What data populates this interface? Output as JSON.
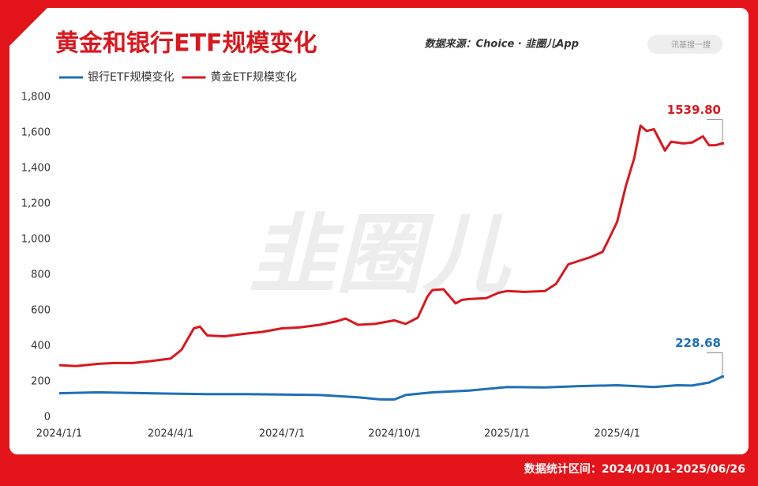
{
  "header": {
    "source": "数据来源：Choice · 韭圈儿App",
    "search": "讯基搜一搜"
  },
  "watermark": "韭圈儿",
  "footer": "数据统计区间：2024/01/01-2025/06/26",
  "chart_data": {
    "type": "line",
    "title": "黄金和银行ETF规模变化",
    "xlim": [
      "2024/1/1",
      "2025/6/26"
    ],
    "xticks": [
      "2024/1/1",
      "2024/4/1",
      "2024/7/1",
      "2024/10/1",
      "2025/1/1",
      "2025/4/1"
    ],
    "ylim": [
      0,
      1800
    ],
    "yticks": [
      0,
      200,
      400,
      600,
      800,
      {
        "value": 1000,
        "label": "1,000"
      },
      {
        "value": 1200,
        "label": "1,200"
      },
      {
        "value": 1400,
        "label": "1,400"
      },
      {
        "value": 1600,
        "label": "1,600"
      },
      {
        "value": 1800,
        "label": "1,800"
      }
    ],
    "grid": false,
    "legend": "top-left",
    "series": [
      {
        "name": "银行ETF规模变化",
        "color": "#1f6fb8",
        "x": [
          "2024/1/1",
          "2024/2/1",
          "2024/3/1",
          "2024/4/1",
          "2024/5/1",
          "2024/6/1",
          "2024/7/1",
          "2024/8/1",
          "2024/9/1",
          "2024/9/20",
          "2024/10/1",
          "2024/10/10",
          "2024/11/1",
          "2024/12/1",
          "2025/1/1",
          "2025/2/1",
          "2025/3/1",
          "2025/4/1",
          "2025/5/1",
          "2025/5/20",
          "2025/6/1",
          "2025/6/15",
          "2025/6/26"
        ],
        "values": [
          135,
          140,
          137,
          133,
          130,
          130,
          128,
          125,
          112,
          100,
          100,
          125,
          140,
          150,
          170,
          168,
          175,
          180,
          170,
          180,
          178,
          195,
          228.68
        ]
      },
      {
        "name": "黄金ETF规模变化",
        "color": "#d7191f",
        "x": [
          "2024/1/1",
          "2024/1/15",
          "2024/2/1",
          "2024/2/15",
          "2024/3/1",
          "2024/3/15",
          "2024/4/1",
          "2024/4/10",
          "2024/4/20",
          "2024/4/25",
          "2024/5/1",
          "2024/5/15",
          "2024/6/1",
          "2024/6/15",
          "2024/7/1",
          "2024/7/15",
          "2024/8/1",
          "2024/8/15",
          "2024/8/22",
          "2024/9/1",
          "2024/9/15",
          "2024/10/1",
          "2024/10/10",
          "2024/10/20",
          "2024/10/28",
          "2024/11/1",
          "2024/11/10",
          "2024/11/20",
          "2024/11/25",
          "2024/12/1",
          "2024/12/15",
          "2024/12/25",
          "2025/1/1",
          "2025/1/15",
          "2025/2/1",
          "2025/2/10",
          "2025/2/20",
          "2025/3/1",
          "2025/3/10",
          "2025/3/20",
          "2025/3/25",
          "2025/4/1",
          "2025/4/8",
          "2025/4/15",
          "2025/4/20",
          "2025/4/25",
          "2025/5/1",
          "2025/5/10",
          "2025/5/15",
          "2025/5/25",
          "2025/6/1",
          "2025/6/10",
          "2025/6/15",
          "2025/6/20",
          "2025/6/26"
        ],
        "values": [
          293,
          288,
          300,
          305,
          305,
          315,
          330,
          380,
          500,
          510,
          460,
          455,
          470,
          480,
          500,
          505,
          520,
          540,
          555,
          520,
          525,
          545,
          525,
          560,
          680,
          715,
          720,
          640,
          660,
          665,
          670,
          700,
          710,
          705,
          710,
          750,
          860,
          880,
          900,
          930,
          1000,
          1100,
          1300,
          1460,
          1640,
          1610,
          1620,
          1500,
          1550,
          1540,
          1545,
          1580,
          1530,
          1530,
          1539.8
        ]
      }
    ],
    "annotations": [
      {
        "x": "2025/6/26",
        "y": 1539.8,
        "label": "1539.80",
        "color": "#d7191f"
      },
      {
        "x": "2025/6/26",
        "y": 228.68,
        "label": "228.68",
        "color": "#1f6fb8"
      }
    ]
  }
}
